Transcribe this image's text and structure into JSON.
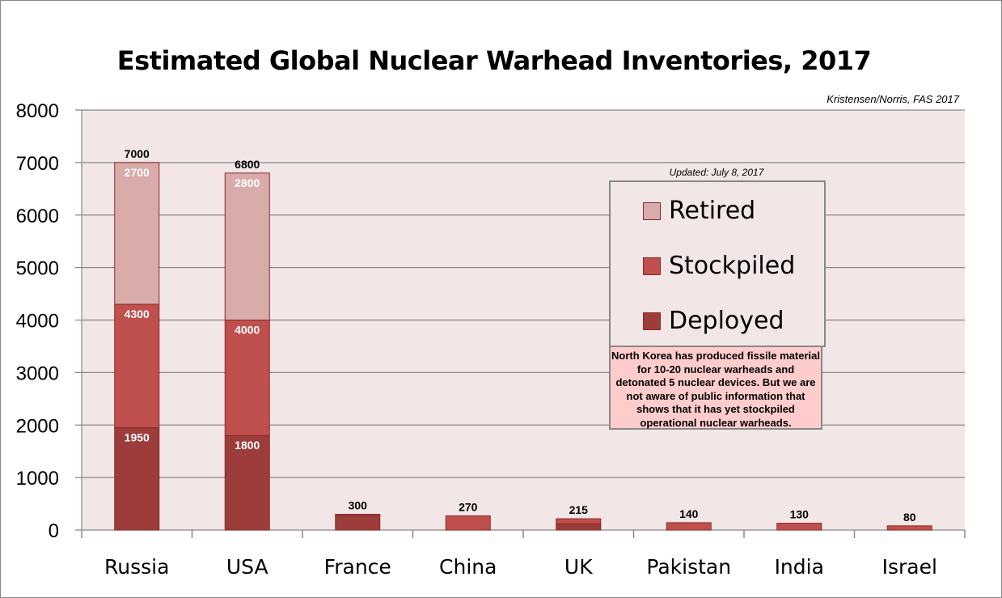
{
  "chart_data": {
    "type": "bar",
    "stacked": true,
    "title": "Estimated Global Nuclear Warhead Inventories, 2017",
    "source": "Kristensen/Norris, FAS 2017",
    "updated": "Updated: July 8, 2017",
    "ylim": [
      0,
      8000
    ],
    "yticks": [
      0,
      1000,
      2000,
      3000,
      4000,
      5000,
      6000,
      7000,
      8000
    ],
    "grid": true,
    "legend_position": "right",
    "categories": [
      "Russia",
      "USA",
      "France",
      "China",
      "UK",
      "Pakistan",
      "India",
      "Israel"
    ],
    "series": [
      {
        "name": "Deployed",
        "color": "#9c3d3b",
        "values": [
          1950,
          1800,
          280,
          0,
          120,
          0,
          0,
          0
        ]
      },
      {
        "name": "Stockpiled",
        "color": "#c0504d",
        "values": [
          2350,
          2200,
          20,
          270,
          95,
          140,
          130,
          80
        ]
      },
      {
        "name": "Retired",
        "color": "#d9abab",
        "values": [
          2700,
          2800,
          0,
          0,
          0,
          0,
          0,
          0
        ]
      }
    ],
    "totals": [
      "7000",
      "6800",
      "300",
      "270",
      "215",
      "140",
      "130",
      "80"
    ],
    "segment_labels": [
      {
        "category": 0,
        "labels": [
          "1950",
          "4300",
          "2700"
        ]
      },
      {
        "category": 1,
        "labels": [
          "1800",
          "4000",
          "2800"
        ]
      }
    ],
    "legend_order": [
      "Retired",
      "Stockpiled",
      "Deployed"
    ],
    "note": "North Korea has produced fissile material for 10-20 nuclear warheads and detonated 5 nuclear devices. But we are not aware of public information that shows that it has yet stockpiled operational nuclear warheads."
  }
}
